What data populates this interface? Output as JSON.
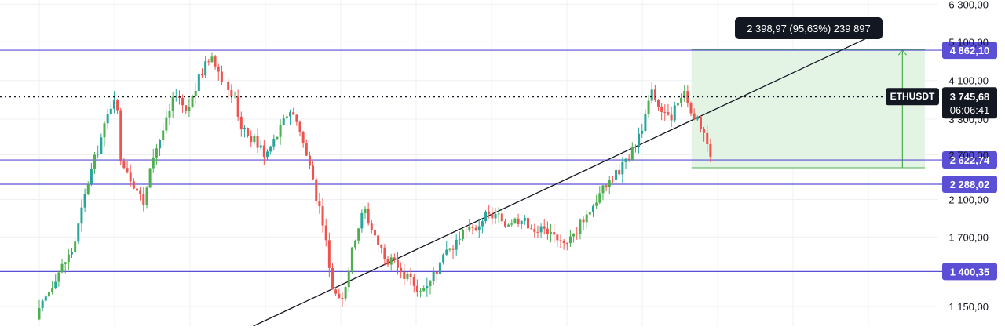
{
  "chart_data": {
    "type": "candlestick",
    "symbol": "ETHUSDT",
    "y_scale": "log",
    "ylim": [
      1030,
      6450
    ],
    "yticks": [
      {
        "value": 6300,
        "label": "6 300,00"
      },
      {
        "value": 5100,
        "label": "5 100,00"
      },
      {
        "value": 4100,
        "label": "4 100,00"
      },
      {
        "value": 3300,
        "label": "3 300,00"
      },
      {
        "value": 2700,
        "label": "2 700,00"
      },
      {
        "value": 2100,
        "label": "2 100,00"
      },
      {
        "value": 1700,
        "label": "1 700,00"
      },
      {
        "value": 1150,
        "label": "1 150,00"
      }
    ],
    "horizontal_levels": [
      {
        "value": 4862.1,
        "label": "4 862,10"
      },
      {
        "value": 2622.74,
        "label": "2 622,74"
      },
      {
        "value": 2288.02,
        "label": "2 288,02"
      },
      {
        "value": 1400.35,
        "label": "1 400,35"
      }
    ],
    "last_price": {
      "symbol": "ETHUSDT",
      "value": 3745.68,
      "label": "3 745,68",
      "countdown": "06:06:41"
    },
    "measure": {
      "text": "2 398,97 (95,63%) 239 897",
      "from": 2510,
      "to": 4880
    },
    "trendline": {
      "from": [
        0.27,
        1030
      ],
      "to": [
        0.935,
        5350
      ]
    },
    "grid": true,
    "colors": {
      "up": "#26a69a",
      "up_bright": "#4caf50",
      "down": "#ef5350",
      "level": "#5b4fd6",
      "measure_fill": "#dff2df",
      "measure_line": "#4caf50",
      "grid": "#eef0f3",
      "label_bg": "#131722"
    },
    "price_path": [
      [
        0.0,
        1070
      ],
      [
        0.02,
        1350
      ],
      [
        0.04,
        1600
      ],
      [
        0.055,
        2300
      ],
      [
        0.07,
        3000
      ],
      [
        0.085,
        3900
      ],
      [
        0.09,
        2700
      ],
      [
        0.1,
        2400
      ],
      [
        0.115,
        2050
      ],
      [
        0.125,
        2700
      ],
      [
        0.14,
        3300
      ],
      [
        0.15,
        3900
      ],
      [
        0.16,
        3400
      ],
      [
        0.175,
        4200
      ],
      [
        0.185,
        4700
      ],
      [
        0.195,
        4300
      ],
      [
        0.21,
        3800
      ],
      [
        0.22,
        3100
      ],
      [
        0.235,
        2900
      ],
      [
        0.245,
        2700
      ],
      [
        0.26,
        3100
      ],
      [
        0.27,
        3500
      ],
      [
        0.28,
        3200
      ],
      [
        0.295,
        2300
      ],
      [
        0.305,
        1900
      ],
      [
        0.315,
        1300
      ],
      [
        0.325,
        1150
      ],
      [
        0.34,
        1700
      ],
      [
        0.35,
        2000
      ],
      [
        0.36,
        1700
      ],
      [
        0.375,
        1500
      ],
      [
        0.39,
        1400
      ],
      [
        0.41,
        1250
      ],
      [
        0.43,
        1450
      ],
      [
        0.45,
        1700
      ],
      [
        0.47,
        1800
      ],
      [
        0.48,
        1950
      ],
      [
        0.49,
        1900
      ],
      [
        0.5,
        1850
      ],
      [
        0.515,
        1880
      ],
      [
        0.53,
        1800
      ],
      [
        0.545,
        1750
      ],
      [
        0.555,
        1700
      ],
      [
        0.57,
        1680
      ],
      [
        0.585,
        1900
      ],
      [
        0.6,
        2150
      ],
      [
        0.615,
        2400
      ],
      [
        0.63,
        2600
      ],
      [
        0.645,
        3100
      ],
      [
        0.655,
        3900
      ],
      [
        0.665,
        3500
      ],
      [
        0.675,
        3300
      ],
      [
        0.685,
        3600
      ],
      [
        0.69,
        3800
      ],
      [
        0.7,
        3400
      ],
      [
        0.71,
        3100
      ],
      [
        0.72,
        2700
      ],
      [
        0.735,
        2600
      ],
      [
        0.75,
        2500
      ],
      [
        0.76,
        2550
      ],
      [
        0.77,
        3200
      ],
      [
        0.78,
        3700
      ],
      [
        0.79,
        3900
      ],
      [
        0.8,
        3200
      ],
      [
        0.81,
        2800
      ],
      [
        0.82,
        2600
      ],
      [
        0.83,
        2200
      ],
      [
        0.84,
        1900
      ],
      [
        0.85,
        1700
      ],
      [
        0.86,
        1950
      ],
      [
        0.87,
        2500
      ],
      [
        0.88,
        2600
      ],
      [
        0.89,
        2400
      ],
      [
        0.9,
        2500
      ],
      [
        0.91,
        2900
      ],
      [
        0.92,
        3745.68
      ]
    ]
  }
}
